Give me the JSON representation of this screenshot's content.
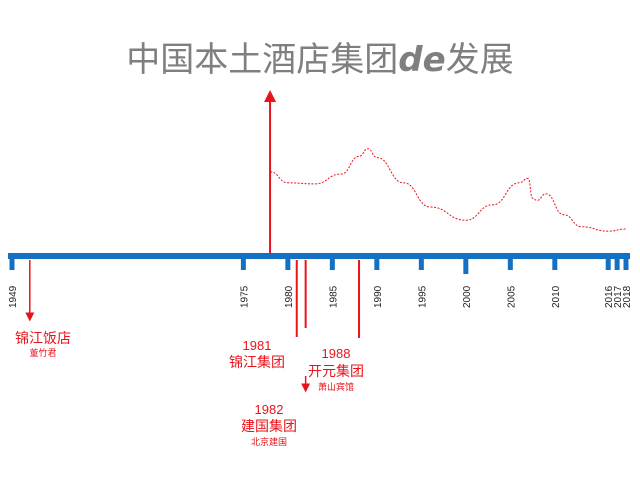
{
  "title": {
    "main": "中国本土酒店集团",
    "de": "de",
    "tail": "发展"
  },
  "axis": {
    "start_year": 1949,
    "end_year": 2018,
    "ticks": [
      1949,
      1975,
      1980,
      1985,
      1990,
      1995,
      2000,
      2005,
      2010,
      2016,
      2017,
      2018
    ]
  },
  "milestones": [
    {
      "id": "jinjiang-hotel",
      "year": 1951,
      "label_year": "",
      "name": "锦江饭店",
      "sub": "董竹君"
    },
    {
      "id": "jinjiang-group",
      "year": 1981,
      "label_year": "1981",
      "name": "锦江集团",
      "sub": ""
    },
    {
      "id": "jianguo-group",
      "year": 1982,
      "label_year": "1982",
      "name": "建国集团",
      "sub": "北京建国"
    },
    {
      "id": "kaiyuan-group",
      "year": 1988,
      "label_year": "1988",
      "name": "开元集团",
      "sub": "萧山宾馆"
    }
  ],
  "growth_marker_year": 1978,
  "trend_curve": {
    "x": [
      1978,
      1980,
      1983,
      1986,
      1988,
      1989,
      1990,
      1993,
      1996,
      2000,
      2003,
      2006,
      2007,
      2007.5,
      2008,
      2009,
      2011,
      2013,
      2016,
      2018
    ],
    "y": [
      0.62,
      0.52,
      0.51,
      0.6,
      0.76,
      0.83,
      0.75,
      0.52,
      0.3,
      0.18,
      0.32,
      0.52,
      0.56,
      0.38,
      0.36,
      0.42,
      0.23,
      0.12,
      0.08,
      0.1
    ]
  },
  "colors": {
    "axis": "#1470c2",
    "accent": "#e8141b",
    "title": "#7f7f7f"
  }
}
